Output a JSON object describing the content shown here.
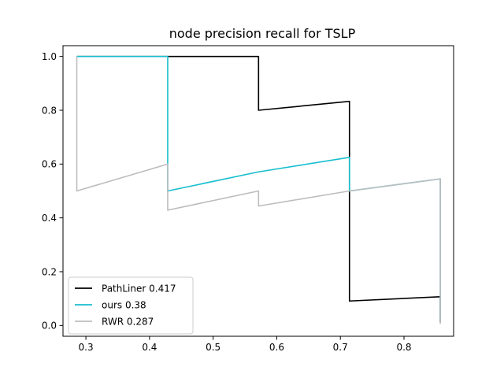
{
  "chart_data": {
    "type": "line",
    "title": "node precision recall for TSLP",
    "xlabel": "",
    "ylabel": "",
    "xlim": [
      0.264,
      0.878
    ],
    "ylim": [
      -0.04,
      1.04
    ],
    "xticks": [
      0.3,
      0.4,
      0.5,
      0.6,
      0.7,
      0.8
    ],
    "xtick_labels": [
      "0.3",
      "0.4",
      "0.5",
      "0.6",
      "0.7",
      "0.8"
    ],
    "yticks": [
      0.0,
      0.2,
      0.4,
      0.6,
      0.8,
      1.0
    ],
    "ytick_labels": [
      "0.0",
      "0.2",
      "0.4",
      "0.6",
      "0.8",
      "1.0"
    ],
    "grid": false,
    "legend_placement": "lower-left",
    "series": [
      {
        "name": "PathLiner 0.417",
        "color": "#000000",
        "x": [
          0.2857,
          0.2857,
          0.4286,
          0.5714,
          0.5714,
          0.7143,
          0.7143,
          0.8571,
          0.8571
        ],
        "y": [
          1.0,
          1.0,
          1.0,
          1.0,
          0.8,
          0.833,
          0.091,
          0.107,
          0.012
        ]
      },
      {
        "name": "ours 0.38",
        "color": "#17becf",
        "x": [
          0.2857,
          0.4286,
          0.4286,
          0.5714,
          0.7143,
          0.7143,
          0.8571,
          0.8571
        ],
        "y": [
          1.0,
          1.0,
          0.5,
          0.571,
          0.625,
          0.5,
          0.545,
          0.012
        ]
      },
      {
        "name": "RWR 0.287",
        "color": "#bdbdbd",
        "x": [
          0.2857,
          0.2857,
          0.4286,
          0.4286,
          0.5714,
          0.5714,
          0.7143,
          0.8571,
          0.8571
        ],
        "y": [
          1.0,
          0.5,
          0.6,
          0.4286,
          0.5,
          0.444,
          0.5,
          0.545,
          0.007
        ]
      }
    ]
  }
}
